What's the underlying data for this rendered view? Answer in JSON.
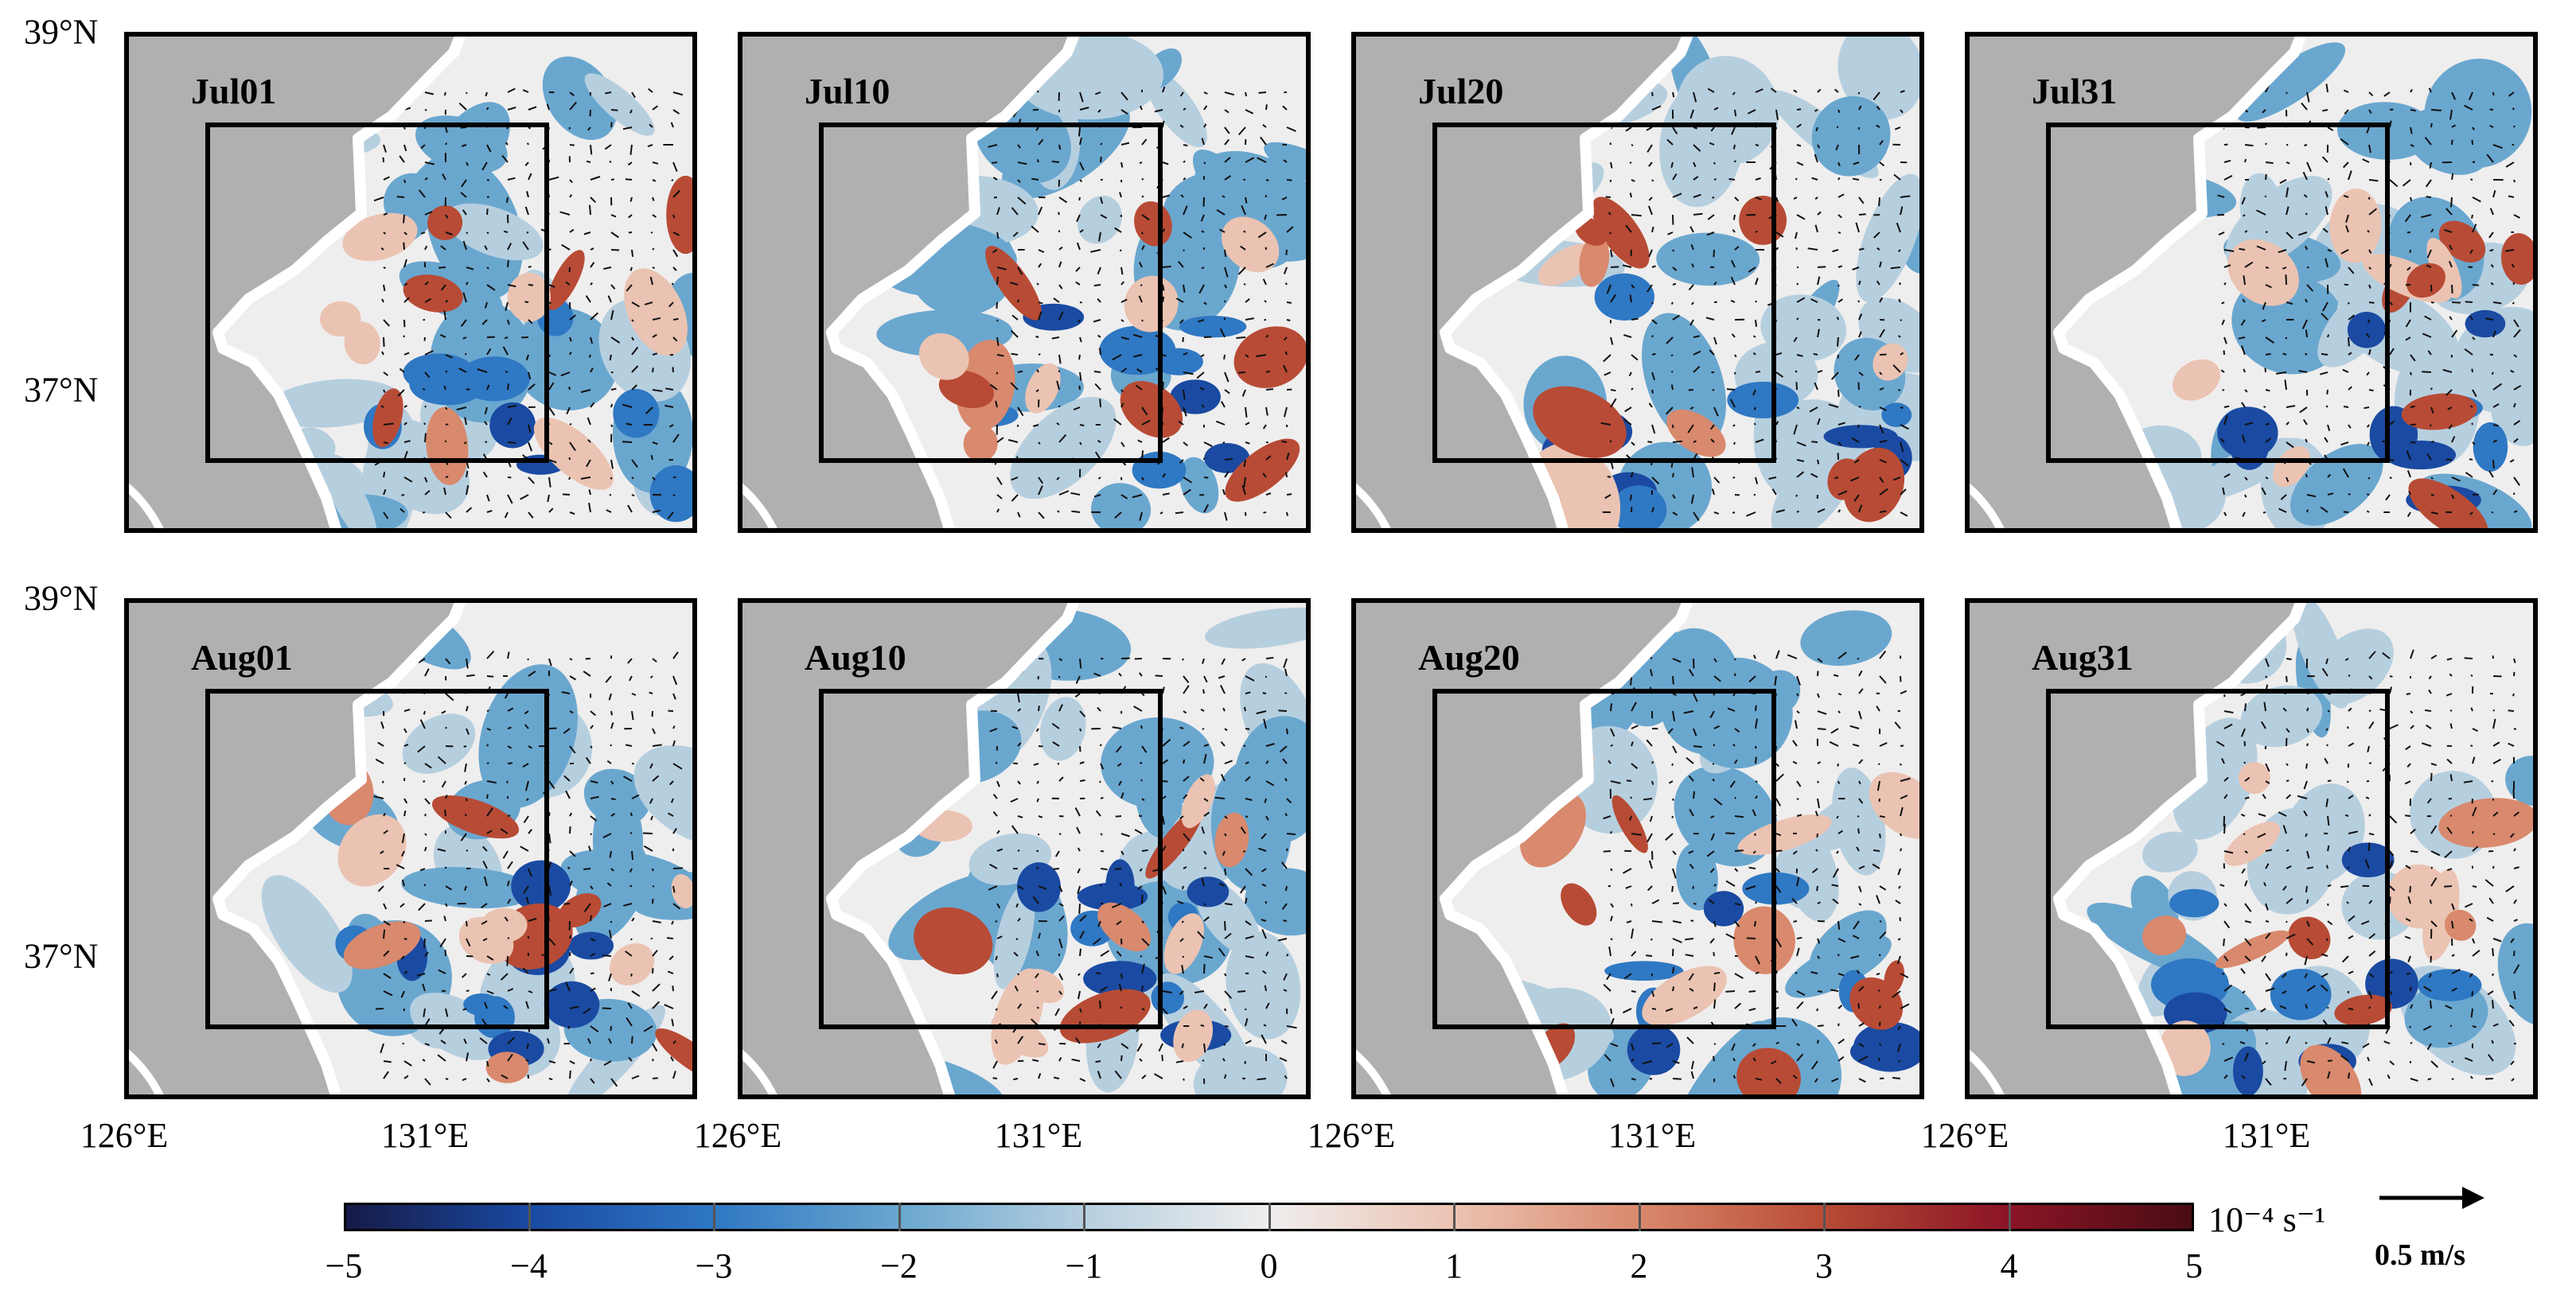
{
  "panels": [
    {
      "label": "Jul01"
    },
    {
      "label": "Jul10"
    },
    {
      "label": "Jul20"
    },
    {
      "label": "Jul31"
    },
    {
      "label": "Aug01"
    },
    {
      "label": "Aug10"
    },
    {
      "label": "Aug20"
    },
    {
      "label": "Aug31"
    }
  ],
  "lat_labels": [
    "39°N",
    "37°N"
  ],
  "lon_labels": [
    "126°E",
    "131°E"
  ],
  "colorbar": {
    "ticks": [
      "−5",
      "−4",
      "−3",
      "−2",
      "−1",
      "0",
      "1",
      "2",
      "3",
      "4",
      "5"
    ],
    "unit": "10⁻⁴ s⁻¹",
    "min": -5,
    "max": 5,
    "colors": {
      "neg5": "#161a47",
      "neg4": "#1a4aa2",
      "neg3": "#2f78c3",
      "neg2": "#6aa7cf",
      "neg1": "#b6cfdf",
      "zero": "#efeeee",
      "pos1": "#ebc3b2",
      "pos2": "#d9896d",
      "pos3": "#b84b35",
      "pos4": "#8b1526",
      "pos5": "#4a0c14"
    }
  },
  "reference_vector": {
    "label": "0.5 m/s"
  },
  "land_color": "#b0b0b0"
}
